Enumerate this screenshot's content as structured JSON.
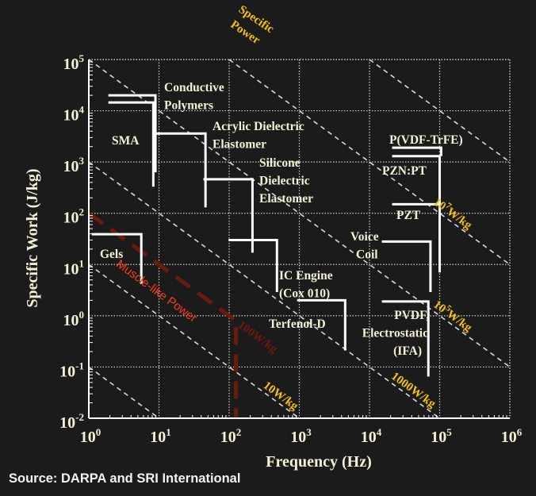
{
  "chart_data": {
    "type": "line",
    "title": "",
    "xlabel": "Frequency (Hz)",
    "ylabel": "Specific Work (J/kg)",
    "xscale": "log",
    "yscale": "log",
    "xlim": [
      1,
      1000000
    ],
    "ylim": [
      0.01,
      100000
    ],
    "grid": true,
    "x_ticks": [
      {
        "base": "10",
        "exp": "0"
      },
      {
        "base": "10",
        "exp": "1"
      },
      {
        "base": "10",
        "exp": "2"
      },
      {
        "base": "10",
        "exp": "3"
      },
      {
        "base": "10",
        "exp": "4"
      },
      {
        "base": "10",
        "exp": "5"
      },
      {
        "base": "10",
        "exp": "6"
      }
    ],
    "y_ticks": [
      {
        "base": "10",
        "exp": "-2"
      },
      {
        "base": "10",
        "exp": "-1"
      },
      {
        "base": "10",
        "exp": "0"
      },
      {
        "base": "10",
        "exp": "1"
      },
      {
        "base": "10",
        "exp": "2"
      },
      {
        "base": "10",
        "exp": "3"
      },
      {
        "base": "10",
        "exp": "4"
      },
      {
        "base": "10",
        "exp": "5"
      }
    ],
    "power_lines": [
      {
        "power_w_per_kg": 0.1,
        "label": ""
      },
      {
        "power_w_per_kg": 10,
        "label": "10W/kg"
      },
      {
        "power_w_per_kg": 1000,
        "label": "1000W/kg"
      },
      {
        "power_w_per_kg": 100000,
        "label_base": "10",
        "label_exp": "5",
        "label_unit": "W/kg"
      },
      {
        "power_w_per_kg": 10000000,
        "label_base": "10",
        "label_exp": "7",
        "label_unit": "W/kg"
      },
      {
        "power_w_per_kg": 1000000000,
        "label": ""
      }
    ],
    "power_axis_label": [
      "Specific",
      "Power"
    ],
    "muscle_line": {
      "label": "Muscle-like Power",
      "power_label": "100W/kg",
      "color": "#6a1a0e",
      "label_color": "#ff3b1a",
      "points": [
        [
          1,
          100
        ],
        [
          100,
          1
        ],
        [
          125,
          0.8
        ],
        [
          125,
          0.01
        ]
      ]
    },
    "series": [
      {
        "name": "Conductive Polymers",
        "label_lines": [
          "Conductive",
          "Polymers"
        ],
        "work": 20000,
        "f_min": 1.9,
        "f_max": 8.9,
        "work_min": 630
      },
      {
        "name": "SMA",
        "label_lines": [
          "SMA"
        ],
        "work": 14500,
        "f_min": 1.9,
        "f_max": 8.3,
        "work_min": 330
      },
      {
        "name": "Acrylic Dielectric Elastomer",
        "label_lines": [
          "Acrylic Dielectric",
          "Elastomer"
        ],
        "work": 3600,
        "f_min": 9.1,
        "f_max": 46,
        "work_min": 130
      },
      {
        "name": "Silicone Dielectric Elastomer",
        "label_lines": [
          "Silicone",
          "Dielectric",
          "Elastomer"
        ],
        "work": 460,
        "f_min": 43,
        "f_max": 215,
        "work_min": 17
      },
      {
        "name": "Gels",
        "label_lines": [
          "Gels"
        ],
        "work": 39,
        "f_min": 1.1,
        "f_max": 5.6,
        "work_min": 4.2
      },
      {
        "name": "IC Engine (Cox 010)",
        "label_lines": [
          "IC Engine",
          "(Cox 010)"
        ],
        "work": 30,
        "f_min": 98,
        "f_max": 480,
        "work_min": 2.9
      },
      {
        "name": "Terfenol-D",
        "label_lines": [
          "Terfenol-D"
        ],
        "work": 2.0,
        "f_min": 930,
        "f_max": 4500,
        "work_min": 0.21
      },
      {
        "name": "P(VDF-TrFE)",
        "label_lines": [
          "P(VDF-TrFE)"
        ],
        "work": 1900,
        "f_min": 21000,
        "f_max": 105000,
        "work_min": 1300
      },
      {
        "name": "PZN:PT",
        "label_lines": [
          "PZN:PT"
        ],
        "work": 1300,
        "f_min": 21000,
        "f_max": 100000,
        "work_min": 7
      },
      {
        "name": "PZT",
        "label_lines": [
          "PZT"
        ],
        "work": 150,
        "f_min": 21000,
        "f_max": 100000,
        "work_min": 150
      },
      {
        "name": "Voice Coil",
        "label_lines": [
          "Voice",
          "Coil"
        ],
        "work": 28,
        "f_min": 15000,
        "f_max": 74000,
        "work_min": 2.9
      },
      {
        "name": "PVDF, Electrostatic (IFA)",
        "label_lines": [
          "PVDF,",
          "Electrostatic",
          "(IFA)"
        ],
        "work": 1.9,
        "f_min": 15000,
        "f_max": 69000,
        "work_min": 0.065
      }
    ]
  },
  "source": "Source: DARPA and SRI International",
  "colors": {
    "background": "#1b1b1c",
    "text": "#f4f0d6",
    "power_label": "#f4c20d",
    "actuator_line": "#ffffff",
    "grid": "#cfcfcf"
  }
}
